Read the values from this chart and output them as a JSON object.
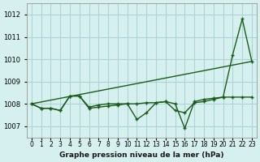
{
  "title": "Graphe pression niveau de la mer (hPa)",
  "bg_color": "#d6f0f0",
  "grid_color": "#b0d4d4",
  "line_color": "#1a5c1a",
  "xlim": [
    -0.5,
    23.5
  ],
  "ylim": [
    1006.5,
    1012.5
  ],
  "yticks": [
    1007,
    1008,
    1009,
    1010,
    1011,
    1012
  ],
  "xtick_labels": [
    "0",
    "1",
    "2",
    "3",
    "4",
    "5",
    "6",
    "7",
    "8",
    "9",
    "10",
    "11",
    "12",
    "13",
    "14",
    "15",
    "16",
    "17",
    "18",
    "19",
    "20",
    "21",
    "22",
    "23"
  ],
  "series1": [
    1008.0,
    1007.8,
    1007.8,
    1007.7,
    1008.35,
    1008.35,
    1007.8,
    1007.85,
    1007.9,
    1007.95,
    1008.0,
    1007.3,
    1007.6,
    1008.05,
    1008.1,
    1008.0,
    1006.9,
    1008.1,
    1008.2,
    1008.25,
    1008.3,
    1010.2,
    1011.8,
    1009.9
  ],
  "series2": [
    1008.0,
    1007.8,
    1007.8,
    1007.7,
    1008.35,
    1008.35,
    1007.85,
    1007.95,
    1008.0,
    1008.0,
    1008.0,
    1008.0,
    1008.05,
    1008.05,
    1008.1,
    1007.7,
    1007.6,
    1008.05,
    1008.1,
    1008.2,
    1008.3,
    1008.3,
    1008.3,
    1008.3
  ],
  "trend_x": [
    0,
    23
  ],
  "trend_y": [
    1008.0,
    1009.9
  ]
}
